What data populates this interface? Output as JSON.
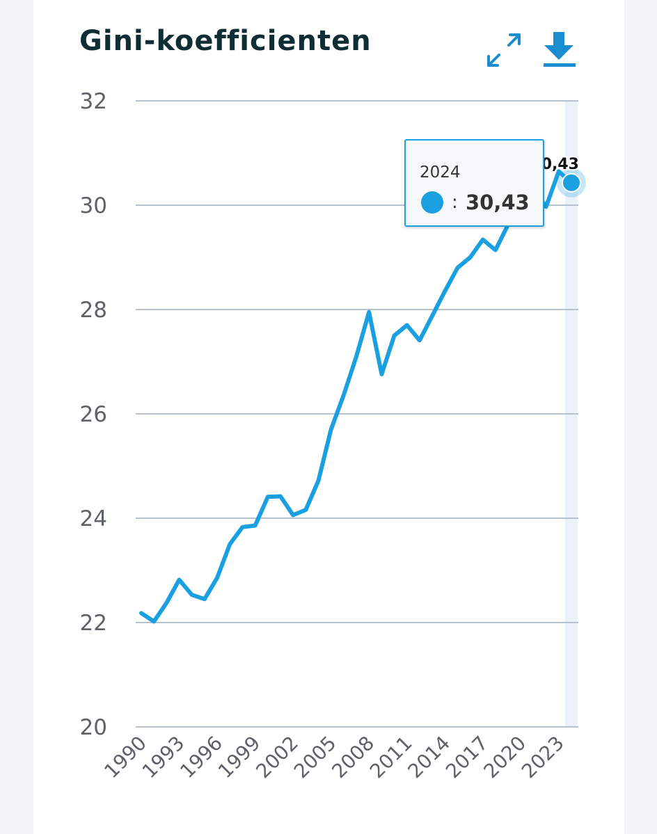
{
  "header": {
    "title": "Gini-koefficienten",
    "expand_icon": "expand-icon",
    "download_icon": "download-icon"
  },
  "colors": {
    "line": "#1a9fe0",
    "grid": "#b7c1cc",
    "title": "#0f2e33",
    "highlight_band": "#eaf1f9"
  },
  "tooltip": {
    "year": "2024",
    "separator": ":",
    "value": "30,43"
  },
  "chart_data": {
    "type": "line",
    "title": "Gini-koefficienten",
    "xlabel": "",
    "ylabel": "",
    "ylim": [
      20,
      32
    ],
    "yticks": [
      "20",
      "22",
      "24",
      "26",
      "28",
      "30",
      "32"
    ],
    "xticks": [
      "1990",
      "1993",
      "1996",
      "1999",
      "2002",
      "2005",
      "2008",
      "2011",
      "2014",
      "2017",
      "2020",
      "2023"
    ],
    "grid": true,
    "x": [
      1990,
      1991,
      1992,
      1993,
      1994,
      1995,
      1996,
      1997,
      1998,
      1999,
      2000,
      2001,
      2002,
      2003,
      2004,
      2005,
      2006,
      2007,
      2008,
      2009,
      2010,
      2011,
      2012,
      2013,
      2014,
      2015,
      2016,
      2017,
      2018,
      2019,
      2020,
      2021,
      2022,
      2023,
      2024
    ],
    "series": [
      {
        "values": [
          22.18,
          22.02,
          22.38,
          22.82,
          22.53,
          22.45,
          22.86,
          23.5,
          23.83,
          23.86,
          24.41,
          24.42,
          24.06,
          24.16,
          24.72,
          25.7,
          26.36,
          27.1,
          27.95,
          26.76,
          27.5,
          27.7,
          27.41,
          27.88,
          28.35,
          28.8,
          29.0,
          29.34,
          29.14,
          29.63,
          29.95,
          30.3,
          29.97,
          30.65,
          30.43
        ],
        "highlight": {
          "x": 2024,
          "label": "30,43"
        }
      }
    ]
  }
}
